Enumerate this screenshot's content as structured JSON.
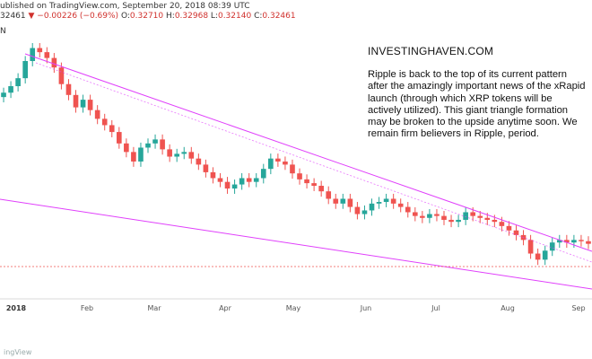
{
  "header": {
    "published": "ublished on TradingView.com, September 20, 2018 08:39 UTC",
    "last_price": "32461",
    "change": "▼ −0.00226 (−0.69%)",
    "ohlc": {
      "o_label": "O:",
      "o": "0.32710",
      "h_label": "H:",
      "h": "0.32968",
      "l_label": "L:",
      "l": "0.32140",
      "c_label": "C:",
      "c": "0.32461"
    },
    "symbol_fragment": "N"
  },
  "annotation": {
    "title": "INVESTINGHAVEN.COM",
    "body": "Ripple is back to the top of its current pattern after the amazingly important news of the xRapid launch (through which XRP tokens will be actively utilized). This giant triangle formation may be broken to the upside anytime soon. We remain firm believers in Ripple, period."
  },
  "footer": {
    "brand": "ingView"
  },
  "colors": {
    "up": "#26a69a",
    "down": "#ef5350",
    "trendline": "#e040fb",
    "price_line": "#ef5350"
  },
  "chart_data": {
    "type": "candlestick",
    "x_ticks": [
      "2018",
      "Feb",
      "Mar",
      "Apr",
      "May",
      "Jun",
      "Jul",
      "Aug",
      "Sep"
    ],
    "ylabel": "",
    "grid": false,
    "last_close": 0.32461,
    "trendlines": [
      "upper descending resistance",
      "lower descending support",
      "upper parallel dotted"
    ],
    "closes": [
      1.9,
      2.05,
      2.25,
      2.75,
      3.2,
      3.05,
      2.85,
      2.55,
      2.1,
      1.85,
      1.6,
      1.75,
      1.55,
      1.4,
      1.3,
      1.2,
      1.05,
      0.95,
      0.85,
      1.0,
      1.05,
      1.1,
      0.98,
      0.9,
      0.93,
      0.95,
      0.88,
      0.82,
      0.75,
      0.7,
      0.67,
      0.62,
      0.65,
      0.7,
      0.67,
      0.7,
      0.78,
      0.88,
      0.85,
      0.82,
      0.74,
      0.69,
      0.66,
      0.64,
      0.6,
      0.55,
      0.52,
      0.55,
      0.5,
      0.46,
      0.48,
      0.52,
      0.53,
      0.55,
      0.52,
      0.5,
      0.47,
      0.45,
      0.44,
      0.46,
      0.45,
      0.43,
      0.42,
      0.43,
      0.47,
      0.45,
      0.44,
      0.43,
      0.42,
      0.4,
      0.38,
      0.36,
      0.34,
      0.29,
      0.27,
      0.3,
      0.33,
      0.34,
      0.33,
      0.34,
      0.335,
      0.325
    ]
  }
}
